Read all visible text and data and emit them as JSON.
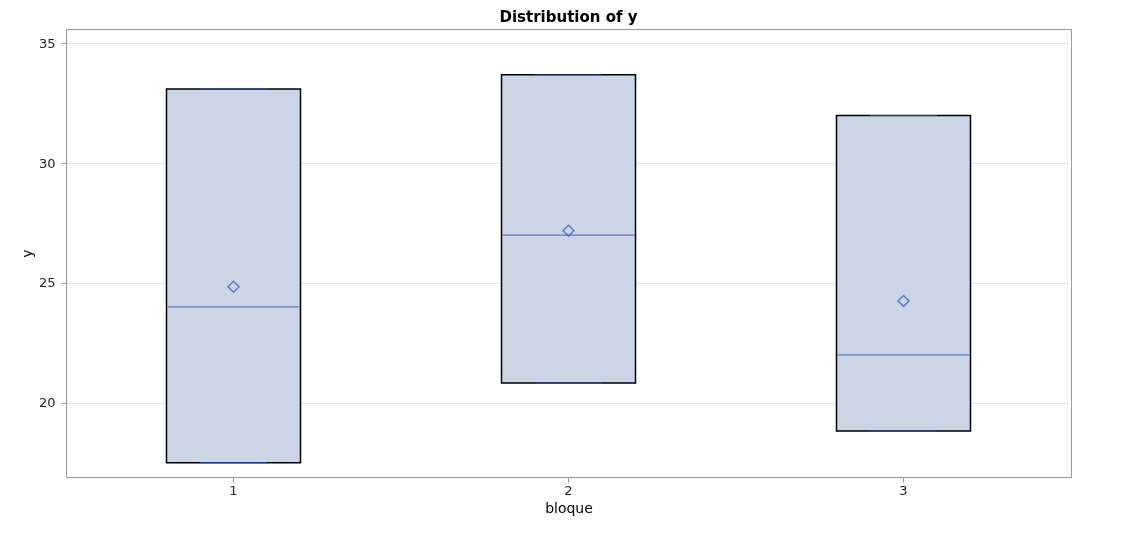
{
  "chart_data": {
    "type": "box",
    "title": "Distribution of y",
    "xlabel": "bloque",
    "ylabel": "y",
    "categories": [
      "1",
      "2",
      "3"
    ],
    "boxes": [
      {
        "low": 17.5,
        "q1": 17.5,
        "median": 24.0,
        "q3": 33.1,
        "high": 33.1,
        "mean": 24.84
      },
      {
        "low": 20.82,
        "q1": 20.82,
        "median": 27.0,
        "q3": 33.69,
        "high": 33.69,
        "mean": 27.18
      },
      {
        "low": 18.82,
        "q1": 18.82,
        "median": 22.0,
        "q3": 31.99,
        "high": 31.99,
        "mean": 24.25
      }
    ],
    "color": "#cbd5e6",
    "ylim": [
      16.9,
      35.6
    ],
    "yticks": [
      20,
      25,
      30,
      35
    ],
    "grid": "y",
    "marker": "diamond"
  }
}
